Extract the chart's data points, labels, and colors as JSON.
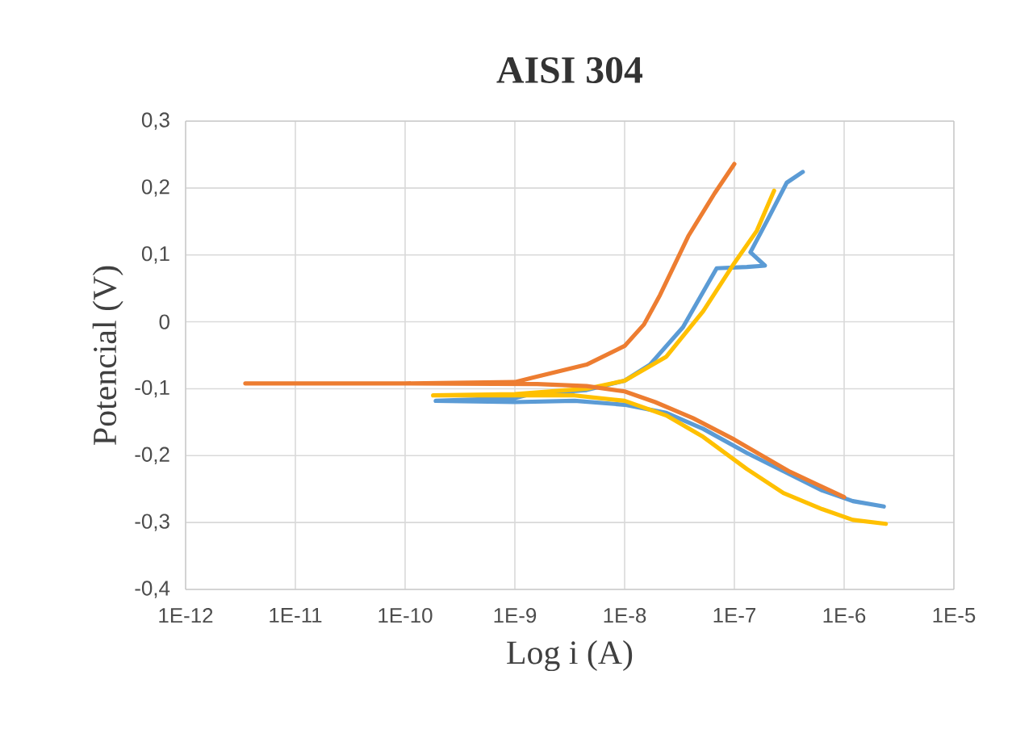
{
  "chart_data": {
    "type": "line",
    "title": "AISI 304",
    "xlabel": "Log i (A)",
    "ylabel": "Potencial (V)",
    "log": "x",
    "grid": true,
    "marker": "none",
    "xlim": [
      1e-12,
      1e-05
    ],
    "xticks": [
      {
        "value": 1e-12,
        "label": "1E-12"
      },
      {
        "value": 1e-11,
        "label": "1E-11"
      },
      {
        "value": 1e-10,
        "label": "1E-10"
      },
      {
        "value": 1e-09,
        "label": "1E-9"
      },
      {
        "value": 1e-08,
        "label": "1E-8"
      },
      {
        "value": 1e-07,
        "label": "1E-7"
      },
      {
        "value": 1e-06,
        "label": "1E-6"
      },
      {
        "value": 1e-05,
        "label": "1E-5"
      }
    ],
    "ylim": [
      -0.4,
      0.3
    ],
    "yticks": [
      {
        "value": -0.4,
        "label": "-0,4"
      },
      {
        "value": -0.3,
        "label": "-0,3"
      },
      {
        "value": -0.2,
        "label": "-0,2"
      },
      {
        "value": -0.1,
        "label": "-0,1"
      },
      {
        "value": 0,
        "label": "0"
      },
      {
        "value": 0.1,
        "label": "0,1"
      },
      {
        "value": 0.2,
        "label": "0,2"
      },
      {
        "value": 0.3,
        "label": "0,3"
      }
    ],
    "series": [
      {
        "color": "#5b9bd5",
        "x": [
          2.3e-06,
          1.2e-06,
          6.3e-07,
          3.2e-07,
          1.3e-07,
          5.2e-08,
          2.4e-08,
          1e-08,
          3.5e-09,
          1e-09,
          1.9e-10,
          1e-09,
          1.4e-09,
          4.5e-09,
          1e-08,
          1.7e-08,
          3.4e-08,
          6.9e-08,
          1.3e-07,
          1.9e-07,
          1.4e-07,
          2e-07,
          3e-07,
          4.2e-07
        ],
        "values": [
          -0.276,
          -0.268,
          -0.252,
          -0.228,
          -0.196,
          -0.16,
          -0.136,
          -0.124,
          -0.118,
          -0.12,
          -0.118,
          -0.114,
          -0.108,
          -0.102,
          -0.088,
          -0.064,
          -0.008,
          0.08,
          0.082,
          0.084,
          0.104,
          0.152,
          0.208,
          0.224
        ]
      },
      {
        "color": "#ffc000",
        "x": [
          2.4e-06,
          1.2e-06,
          6.3e-07,
          2.8e-07,
          1.3e-07,
          5.2e-08,
          2.4e-08,
          1e-08,
          3.5e-09,
          1e-09,
          1.8e-10,
          1e-09,
          4.5e-09,
          1e-08,
          2.4e-08,
          5.2e-08,
          1e-07,
          1.6e-07,
          2.3e-07
        ],
        "values": [
          -0.302,
          -0.296,
          -0.28,
          -0.256,
          -0.22,
          -0.172,
          -0.14,
          -0.118,
          -0.11,
          -0.11,
          -0.11,
          -0.108,
          -0.1,
          -0.088,
          -0.052,
          0.016,
          0.088,
          0.136,
          0.196
        ]
      },
      {
        "color": "#ed7d31",
        "x": [
          1e-06,
          3.2e-07,
          1e-07,
          4.2e-08,
          1.9e-08,
          1e-08,
          4.5e-09,
          1.6e-09,
          1e-10,
          3.5e-12,
          1e-10,
          1e-09,
          1.4e-09,
          4.5e-09,
          1e-08,
          1.5e-08,
          2.1e-08,
          3.8e-08,
          6.6e-08,
          1e-07
        ],
        "values": [
          -0.262,
          -0.224,
          -0.176,
          -0.144,
          -0.12,
          -0.104,
          -0.096,
          -0.093,
          -0.092,
          -0.092,
          -0.092,
          -0.09,
          -0.084,
          -0.064,
          -0.036,
          -0.004,
          0.04,
          0.128,
          0.192,
          0.236
        ]
      }
    ]
  }
}
